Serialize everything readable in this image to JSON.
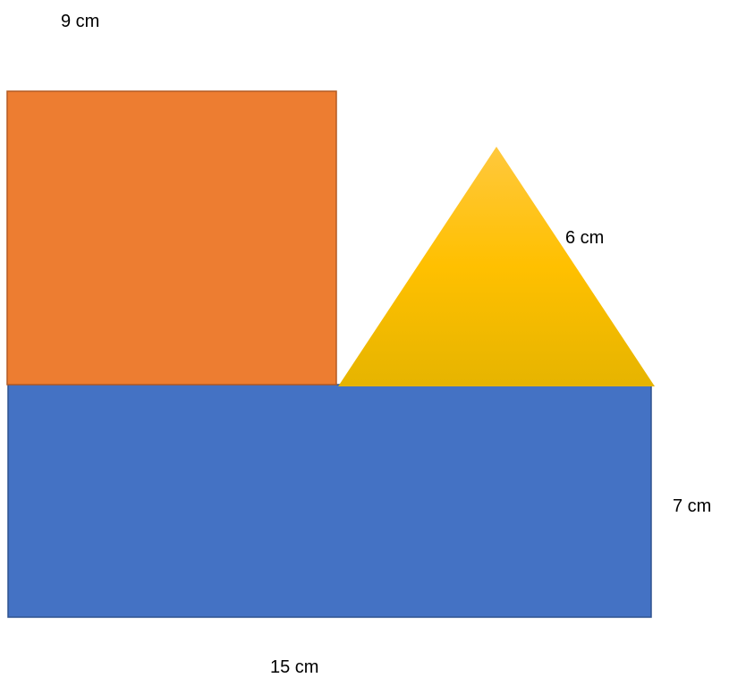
{
  "shapes": {
    "square": {
      "label": "9 cm",
      "fill": "#ED7D31",
      "stroke": "#B35B24"
    },
    "triangle": {
      "label": "6 cm",
      "fill_top": "#FFC83D",
      "fill_mid": "#FFC000",
      "fill_bottom": "#E6B400"
    },
    "rectangle": {
      "width_label": "15 cm",
      "height_label": "7 cm",
      "fill": "#4472C4",
      "stroke": "#2F528F"
    }
  }
}
